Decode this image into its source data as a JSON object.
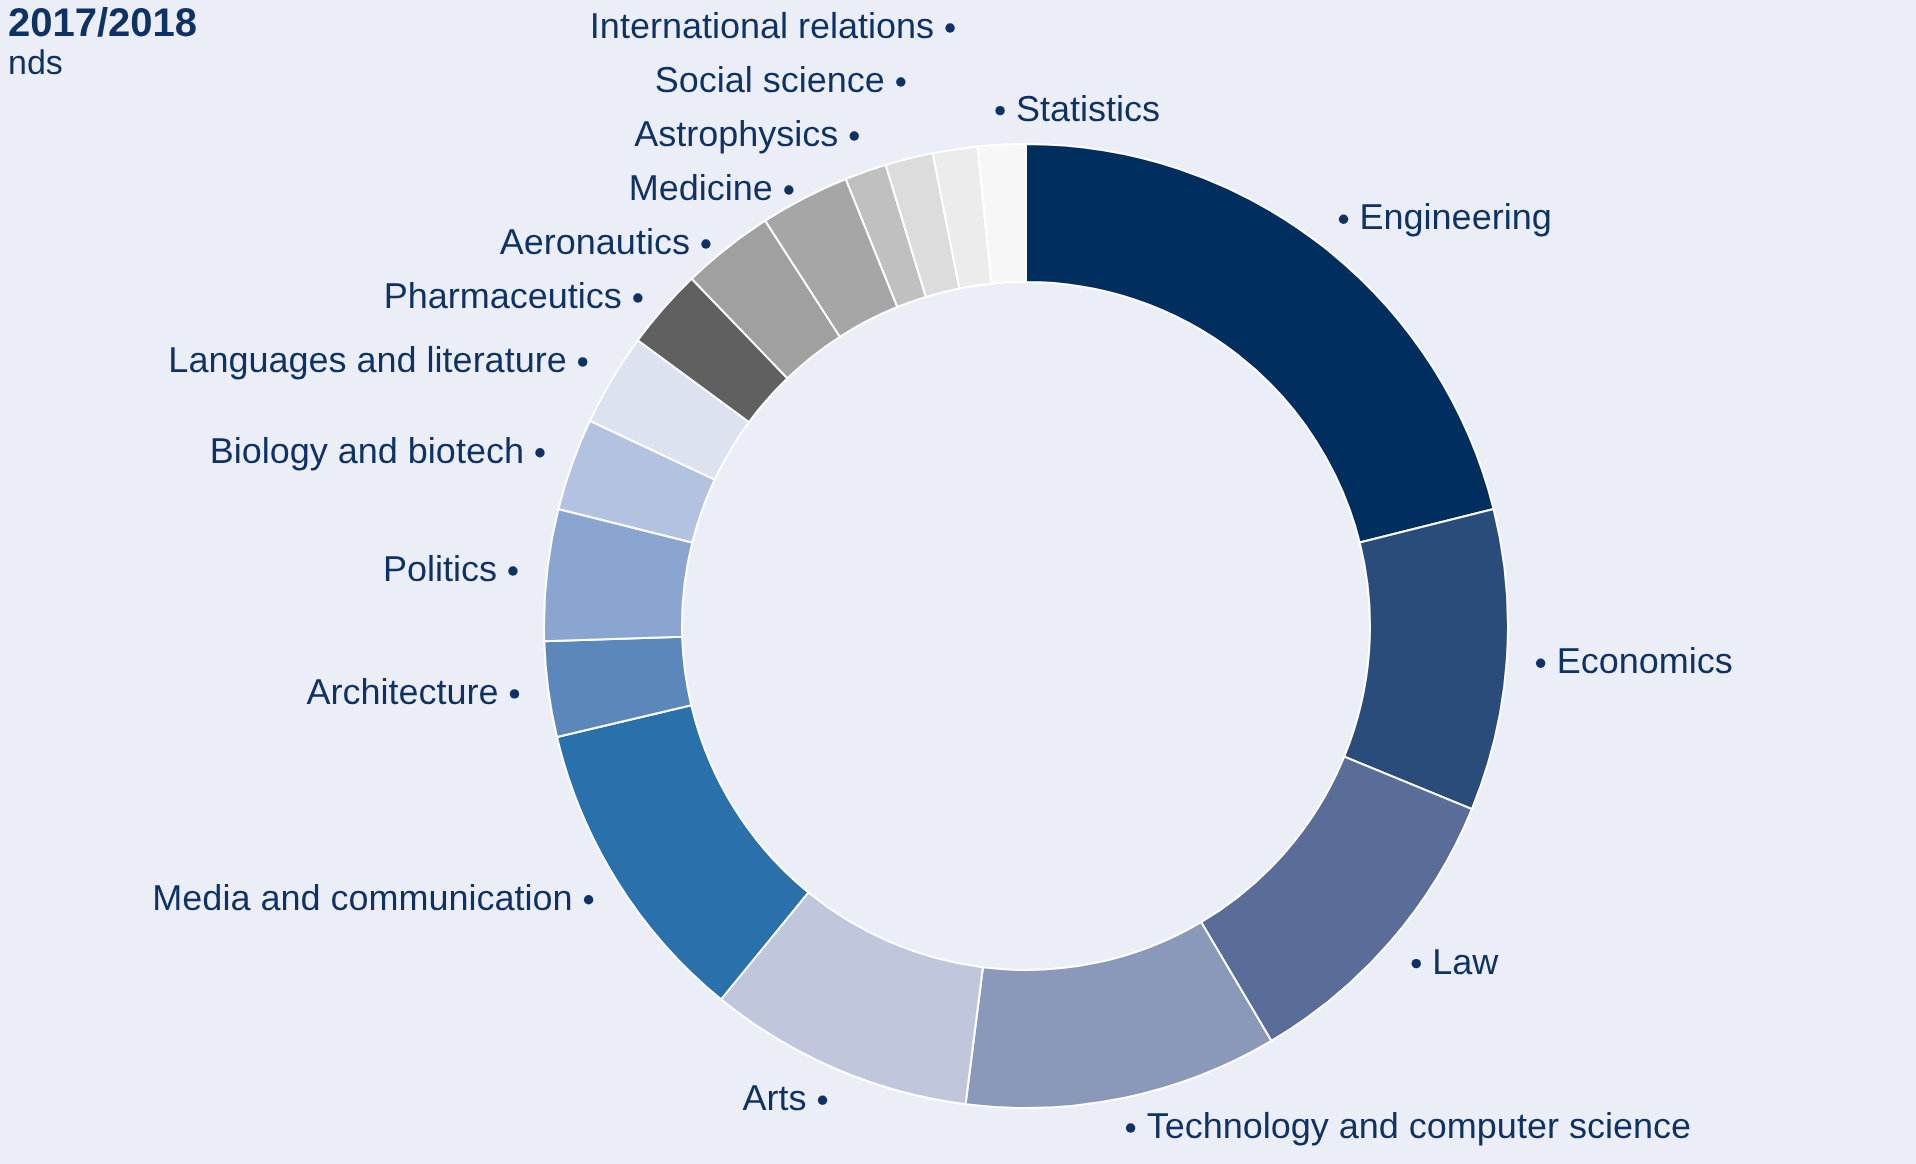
{
  "chart_data": {
    "type": "donut",
    "title": "2017/2018",
    "subtitle": "nds",
    "categories": [
      "Engineering",
      "Economics",
      "Law",
      "Technology and computer science",
      "Arts",
      "Media and communication",
      "Architecture",
      "Politics",
      "Biology and biotech",
      "Languages and literature",
      "Pharmaceutics",
      "Aeronautics",
      "Medicine",
      "Astrophysics",
      "Social science",
      "International relations",
      "Statistics"
    ],
    "values": [
      21.1,
      10.1,
      10.3,
      10.5,
      8.9,
      10.4,
      3.2,
      4.4,
      3.1,
      3.1,
      2.7,
      3.1,
      3.0,
      1.4,
      1.6,
      1.5,
      1.6
    ],
    "colors": [
      "#002f5f",
      "#2a4c7a",
      "#5a6d98",
      "#8a98b9",
      "#c0c7dc",
      "#2a70ab",
      "#5b87bb",
      "#8aa5cf",
      "#b2c2e0",
      "#dde2f1",
      "#5f605f",
      "#a0a0a0",
      "#a6a6a6",
      "#c0c0c0",
      "#dcdcdc",
      "#ececec",
      "#f7f7f7"
    ]
  }
}
